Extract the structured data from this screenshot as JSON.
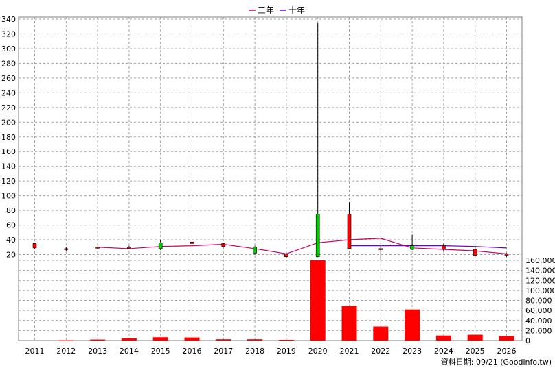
{
  "chart_data": {
    "type": "candlestick-with-volume",
    "legend": [
      "三年",
      "十年"
    ],
    "legend_colors": {
      "三年": "#cc0066",
      "十年": "#6600cc"
    },
    "source": "資料日期: 09/21  (Goodinfo.tw)",
    "price_axis": {
      "ticks": [
        20,
        40,
        60,
        80,
        100,
        120,
        140,
        160,
        180,
        200,
        220,
        240,
        260,
        280,
        300,
        320,
        340
      ],
      "ylim": [
        10,
        340
      ]
    },
    "volume_axis": {
      "ticks": [
        "0",
        "20,000",
        "40,000",
        "60,000",
        "80,000",
        "100,000",
        "120,000",
        "140,000",
        "160,000"
      ],
      "ylim": [
        0,
        160000
      ]
    },
    "grid": true,
    "categories": [
      "2011",
      "2012",
      "2013",
      "2014",
      "2015",
      "2016",
      "2017",
      "2018",
      "2019",
      "2020",
      "2021",
      "2022",
      "2023",
      "2024",
      "2025",
      "2026"
    ],
    "candles": [
      {
        "year": "2011",
        "open": 29,
        "high": 36,
        "low": 28,
        "close": 35
      },
      {
        "year": "2012",
        "open": 28,
        "high": 30,
        "low": 25,
        "close": 28
      },
      {
        "year": "2013",
        "open": 29,
        "high": 31,
        "low": 28,
        "close": 30
      },
      {
        "year": "2014",
        "open": 28,
        "high": 32,
        "low": 27,
        "close": 30
      },
      {
        "year": "2015",
        "open": 36,
        "high": 40,
        "low": 26,
        "close": 28
      },
      {
        "year": "2016",
        "open": 35,
        "high": 40,
        "low": 33,
        "close": 37
      },
      {
        "year": "2017",
        "open": 31,
        "high": 36,
        "low": 30,
        "close": 35
      },
      {
        "year": "2018",
        "open": 30,
        "high": 32,
        "low": 20,
        "close": 22
      },
      {
        "year": "2019",
        "open": 17,
        "high": 22,
        "low": 15,
        "close": 21
      },
      {
        "year": "2020",
        "open": 75,
        "high": 335,
        "low": 17,
        "close": 17
      },
      {
        "year": "2021",
        "open": 28,
        "high": 91,
        "low": 27,
        "close": 75
      },
      {
        "year": "2022",
        "open": 27,
        "high": 33,
        "low": 13,
        "close": 28
      },
      {
        "year": "2023",
        "open": 32,
        "high": 47,
        "low": 26,
        "close": 27
      },
      {
        "year": "2024",
        "open": 27,
        "high": 35,
        "low": 24,
        "close": 32
      },
      {
        "year": "2025",
        "open": 19,
        "high": 32,
        "low": 17,
        "close": 27
      },
      {
        "year": "2026",
        "open": 19,
        "high": 22,
        "low": 17,
        "close": 21
      }
    ],
    "ma3": [
      null,
      null,
      30,
      28,
      31,
      32,
      34,
      28,
      21,
      36,
      40,
      42,
      29,
      27,
      25,
      21
    ],
    "ma10": [
      null,
      null,
      null,
      null,
      null,
      null,
      null,
      null,
      null,
      null,
      32,
      32,
      32,
      32,
      31,
      29
    ],
    "volume": [
      0,
      500,
      2000,
      4500,
      6500,
      6000,
      2500,
      2500,
      1500,
      160000,
      69000,
      28000,
      62000,
      10000,
      11500,
      9000
    ]
  }
}
